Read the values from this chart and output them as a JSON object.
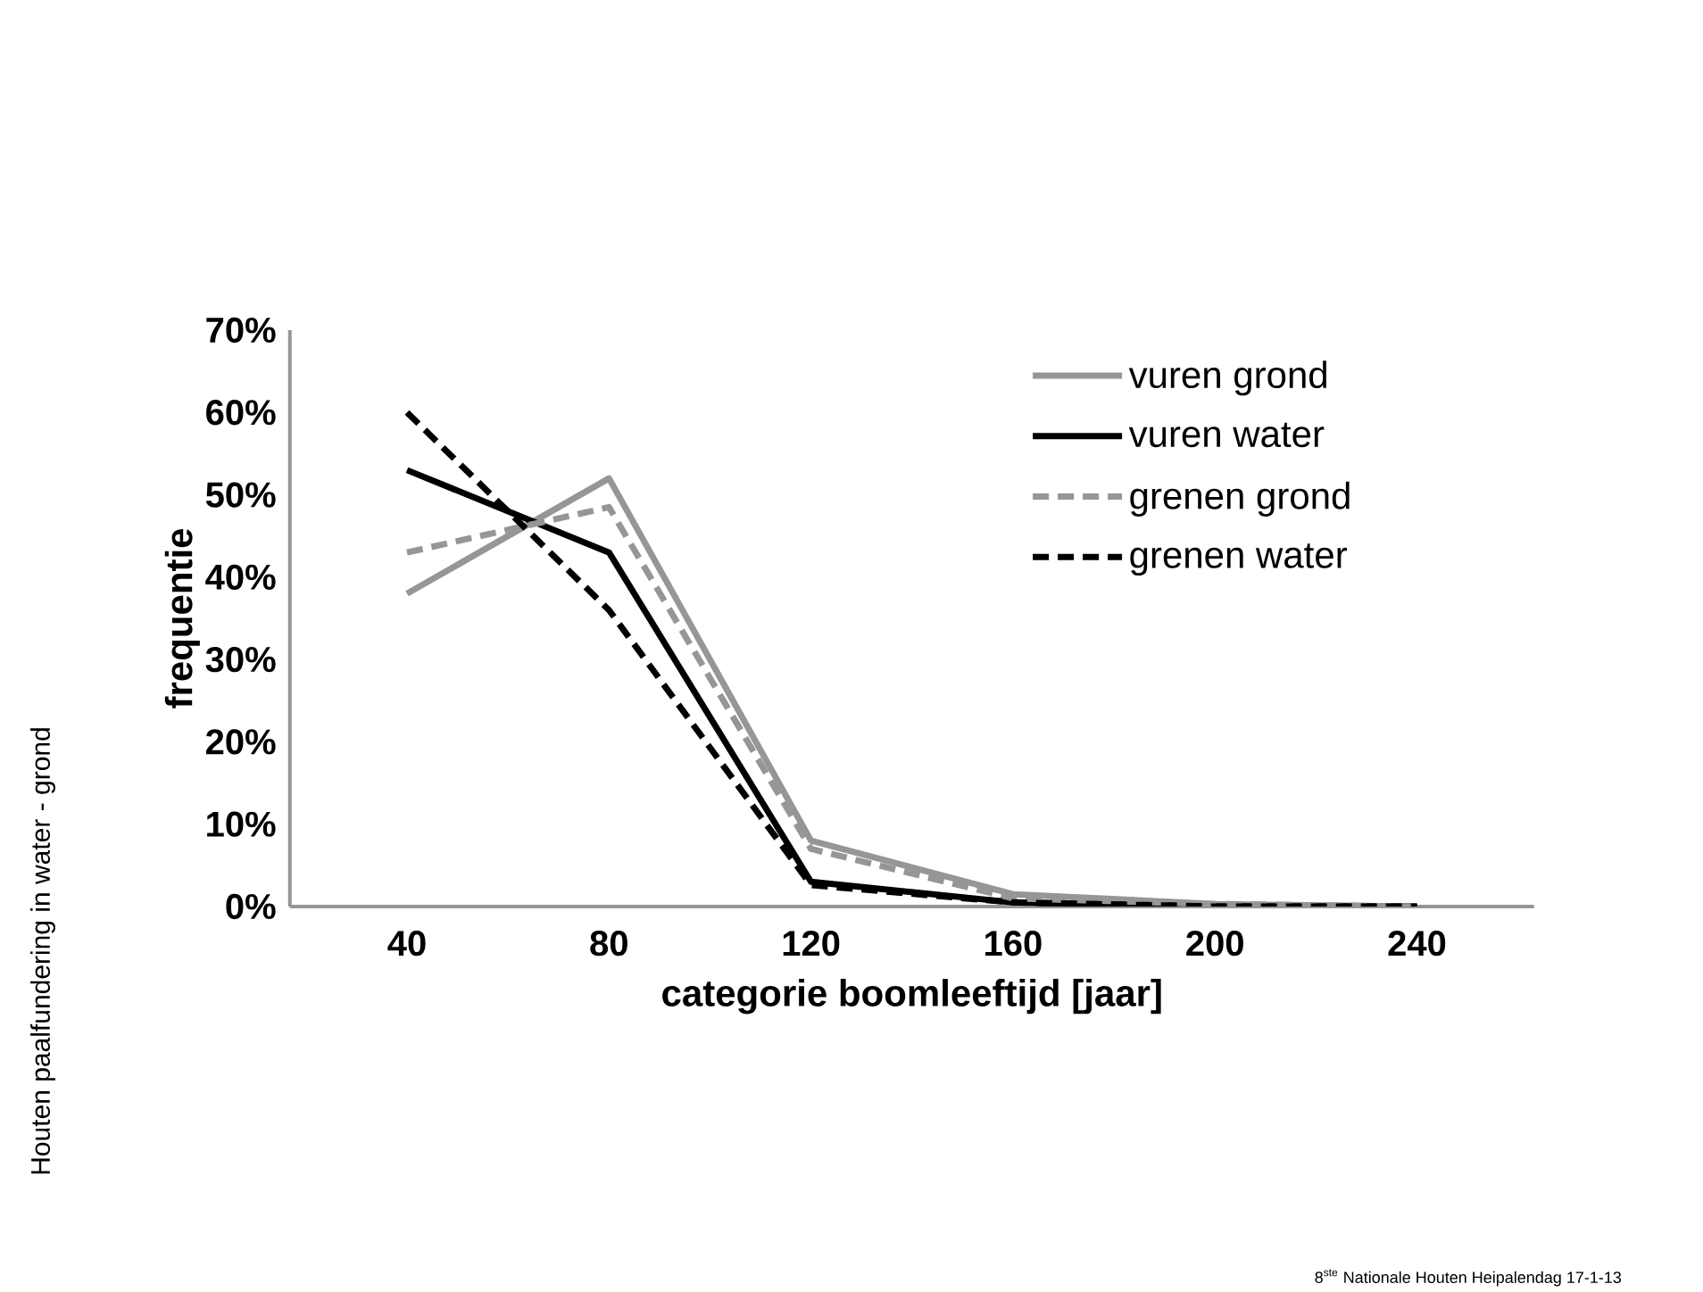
{
  "chart_data": {
    "type": "line",
    "xlabel": "categorie boomleeftijd [jaar]",
    "ylabel": "frequentie",
    "categories": [
      "40",
      "80",
      "120",
      "160",
      "200",
      "240"
    ],
    "series": [
      {
        "name": "vuren grond",
        "color": "#969696",
        "line_style": "solid",
        "values": [
          38,
          52,
          8,
          1.5,
          0.3,
          0
        ]
      },
      {
        "name": "vuren water",
        "color": "#000000",
        "line_style": "solid",
        "values": [
          53,
          43,
          3,
          0.5,
          0,
          0
        ]
      },
      {
        "name": "grenen grond",
        "color": "#969696",
        "line_style": "dashed",
        "values": [
          43,
          48.5,
          7,
          1,
          0.3,
          0
        ]
      },
      {
        "name": "grenen water",
        "color": "#000000",
        "line_style": "dashed",
        "values": [
          60,
          36,
          2.6,
          0.5,
          0,
          0
        ]
      }
    ],
    "ylim": [
      0,
      70
    ],
    "yticks": [
      {
        "value": 0,
        "label": "0%"
      },
      {
        "value": 10,
        "label": "10%"
      },
      {
        "value": 20,
        "label": "20%"
      },
      {
        "value": 30,
        "label": "30%"
      },
      {
        "value": 40,
        "label": "40%"
      },
      {
        "value": 50,
        "label": "50%"
      },
      {
        "value": 60,
        "label": "60%"
      },
      {
        "value": 70,
        "label": "70%"
      }
    ],
    "legend": "top right",
    "grid": false,
    "marker": "none",
    "annotations": [
      "Houten paalfundering in water - grond",
      "8$^{ste}$ Nationale Houten Heipalendag 17-1-13"
    ]
  }
}
